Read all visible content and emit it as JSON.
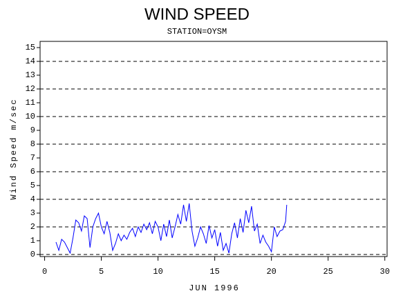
{
  "chart_data": {
    "type": "line",
    "title": "WIND SPEED",
    "subtitle": "STATION=OYSM",
    "y_label": "Wind Speed m/sec",
    "x_label": "JUN 1996",
    "xlim": [
      -0.4,
      30.2
    ],
    "xticks": [
      0,
      5,
      10,
      15,
      20,
      25,
      30
    ],
    "ylim": [
      -0.15,
      15.45
    ],
    "yticks": [
      0,
      1,
      2,
      3,
      4,
      5,
      6,
      7,
      8,
      9,
      10,
      11,
      12,
      13,
      14,
      15
    ],
    "gridlines": [
      0,
      2,
      4,
      6,
      8,
      10,
      12,
      14
    ],
    "x": [
      1,
      1.25,
      1.5,
      1.75,
      2,
      2.25,
      2.5,
      2.75,
      3,
      3.25,
      3.5,
      3.75,
      4,
      4.25,
      4.5,
      4.75,
      5,
      5.25,
      5.5,
      5.75,
      6,
      6.25,
      6.5,
      6.75,
      7,
      7.25,
      7.5,
      7.75,
      8,
      8.25,
      8.5,
      8.75,
      9,
      9.25,
      9.5,
      9.75,
      10,
      10.25,
      10.5,
      10.75,
      11,
      11.25,
      11.5,
      11.75,
      12,
      12.25,
      12.5,
      12.75,
      13,
      13.25,
      13.5,
      13.75,
      14,
      14.25,
      14.5,
      14.75,
      15,
      15.25,
      15.5,
      15.75,
      16,
      16.25,
      16.5,
      16.75,
      17,
      17.25,
      17.5,
      17.75,
      18,
      18.25,
      18.5,
      18.75,
      19,
      19.25,
      19.5,
      19.75,
      20,
      20.25,
      20.5,
      20.75,
      21,
      21.25,
      21.35
    ],
    "series": [
      {
        "name": "Wind Speed",
        "color": "#0000ff",
        "values": [
          0.9,
          0.3,
          1.1,
          0.9,
          0.5,
          0.1,
          1.2,
          2.5,
          2.3,
          1.7,
          2.8,
          2.6,
          0.5,
          2.0,
          2.6,
          3.0,
          2.0,
          1.5,
          2.4,
          1.6,
          0.3,
          0.8,
          1.5,
          1.0,
          1.4,
          1.1,
          1.6,
          1.9,
          1.3,
          2.0,
          1.6,
          2.2,
          1.8,
          2.3,
          1.5,
          2.4,
          2.0,
          1.0,
          2.2,
          1.3,
          2.5,
          1.2,
          2.0,
          2.9,
          2.2,
          3.6,
          2.4,
          3.7,
          1.7,
          0.6,
          1.2,
          2.0,
          1.5,
          0.8,
          2.1,
          1.2,
          1.8,
          0.6,
          1.6,
          0.3,
          0.8,
          0.1,
          1.5,
          2.3,
          1.2,
          2.6,
          1.6,
          3.2,
          2.3,
          3.5,
          1.7,
          2.2,
          0.8,
          1.4,
          0.9,
          0.6,
          0.2,
          2.0,
          1.3,
          1.7,
          1.8,
          2.4,
          3.6
        ]
      }
    ]
  }
}
